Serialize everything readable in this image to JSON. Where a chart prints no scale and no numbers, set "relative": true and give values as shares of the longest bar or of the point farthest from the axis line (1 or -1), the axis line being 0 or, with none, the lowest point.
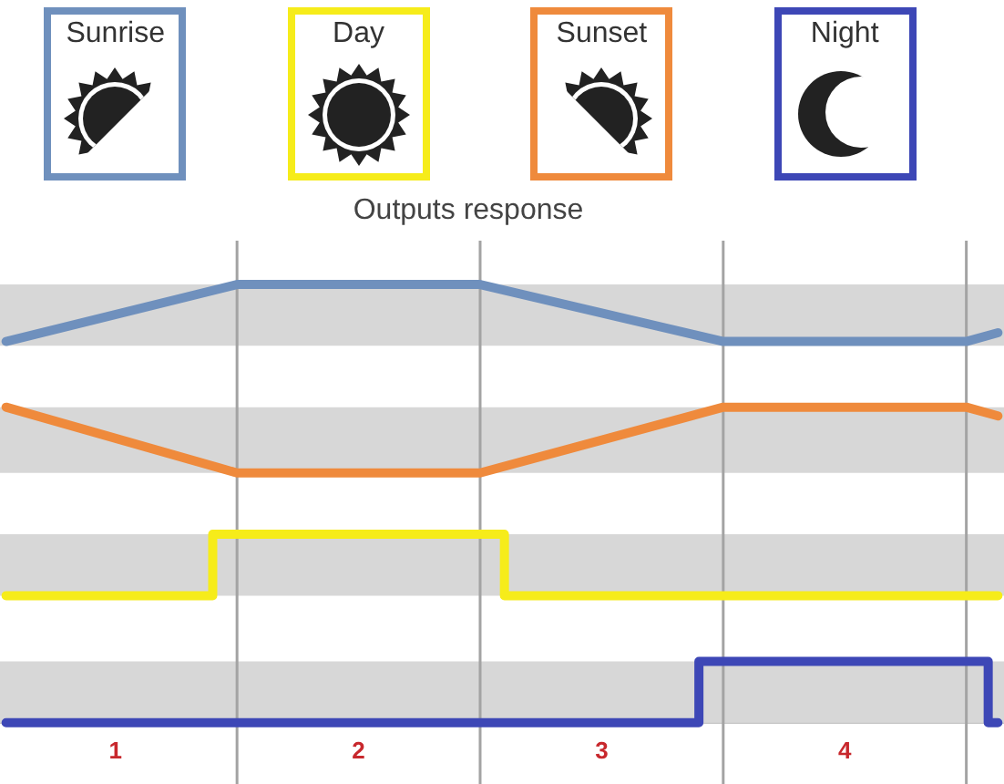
{
  "chart_data": {
    "type": "line",
    "title": "Outputs response",
    "relative": true,
    "xlim": [
      0.025,
      4.155
    ],
    "xticks": [
      {
        "value": 0.5,
        "label": "1"
      },
      {
        "value": 1.5,
        "label": "2"
      },
      {
        "value": 2.5,
        "label": "3"
      },
      {
        "value": 3.5,
        "label": "4"
      }
    ],
    "tick_labels": "x",
    "legend": "top",
    "series": [
      {
        "name": "Sunrise",
        "color": "#6f90bd",
        "x": [
          0.05,
          1,
          2,
          3,
          4,
          4.13
        ],
        "values": [
          0.87,
          1,
          1,
          0.87,
          0.87,
          0.89
        ]
      },
      {
        "name": "Day",
        "type": "step",
        "color": "#f6ec1a",
        "x": [
          0.05,
          0.9,
          2.1,
          4.13
        ],
        "values": [
          0.29,
          0.43,
          0.29,
          0.29
        ]
      },
      {
        "name": "Sunset",
        "color": "#ef8a3c",
        "x": [
          0.05,
          1,
          2,
          3,
          4,
          4.13
        ],
        "values": [
          0.72,
          0.57,
          0.57,
          0.72,
          0.72,
          0.7
        ]
      },
      {
        "name": "Night",
        "type": "step",
        "color": "#3d47b6",
        "x": [
          0.05,
          2.9,
          4.09,
          4.13
        ],
        "values": [
          0,
          0.14,
          0,
          0
        ]
      }
    ],
    "bands": [
      {
        "axis": "y",
        "from": 0.86,
        "to": 1,
        "color": "#d7d7d7"
      },
      {
        "axis": "y",
        "from": 0.57,
        "to": 0.72,
        "color": "#d7d7d7"
      },
      {
        "axis": "y",
        "from": 0.29,
        "to": 0.43,
        "color": "#d7d7d7"
      },
      {
        "axis": "y",
        "from": 0,
        "to": 0.14,
        "color": "#d7d7d7"
      }
    ],
    "ref_lines": [
      {
        "axis": "x",
        "value": 1,
        "color": "#a3a3a3"
      },
      {
        "axis": "x",
        "value": 2,
        "color": "#a3a3a3"
      },
      {
        "axis": "x",
        "value": 3,
        "color": "#a3a3a3"
      },
      {
        "axis": "x",
        "value": 4,
        "color": "#a3a3a3"
      }
    ]
  }
}
